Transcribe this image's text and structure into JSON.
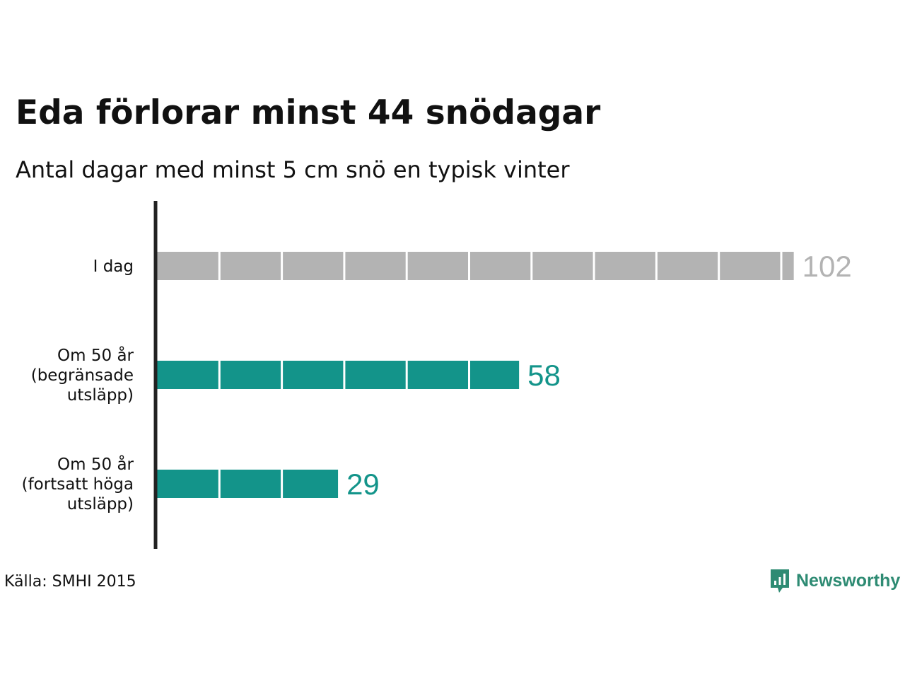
{
  "title": "Eda förlorar minst 44 snödagar",
  "subtitle": "Antal dagar med minst 5 cm snö en typisk vinter",
  "source": "Källa: SMHI 2015",
  "brand": {
    "name": "Newsworthy",
    "color": "#2e8b73",
    "icon": "newsworthy-logo-icon"
  },
  "chart_data": {
    "type": "bar",
    "orientation": "horizontal",
    "categories": [
      [
        "I dag"
      ],
      [
        "Om 50 år",
        "(begränsade",
        "utsläpp)"
      ],
      [
        "Om 50 år",
        "(fortsatt höga",
        "utsläpp)"
      ]
    ],
    "values": [
      102,
      58,
      29
    ],
    "value_labels": [
      "102",
      "58",
      "29"
    ],
    "colors": [
      "#b3b3b3",
      "#13948a",
      "#13948a"
    ],
    "xlim": [
      0,
      102
    ],
    "segment_size": 10,
    "grid": false,
    "title": "Eda förlorar minst 44 snödagar",
    "subtitle": "Antal dagar med minst 5 cm snö en typisk vinter"
  }
}
